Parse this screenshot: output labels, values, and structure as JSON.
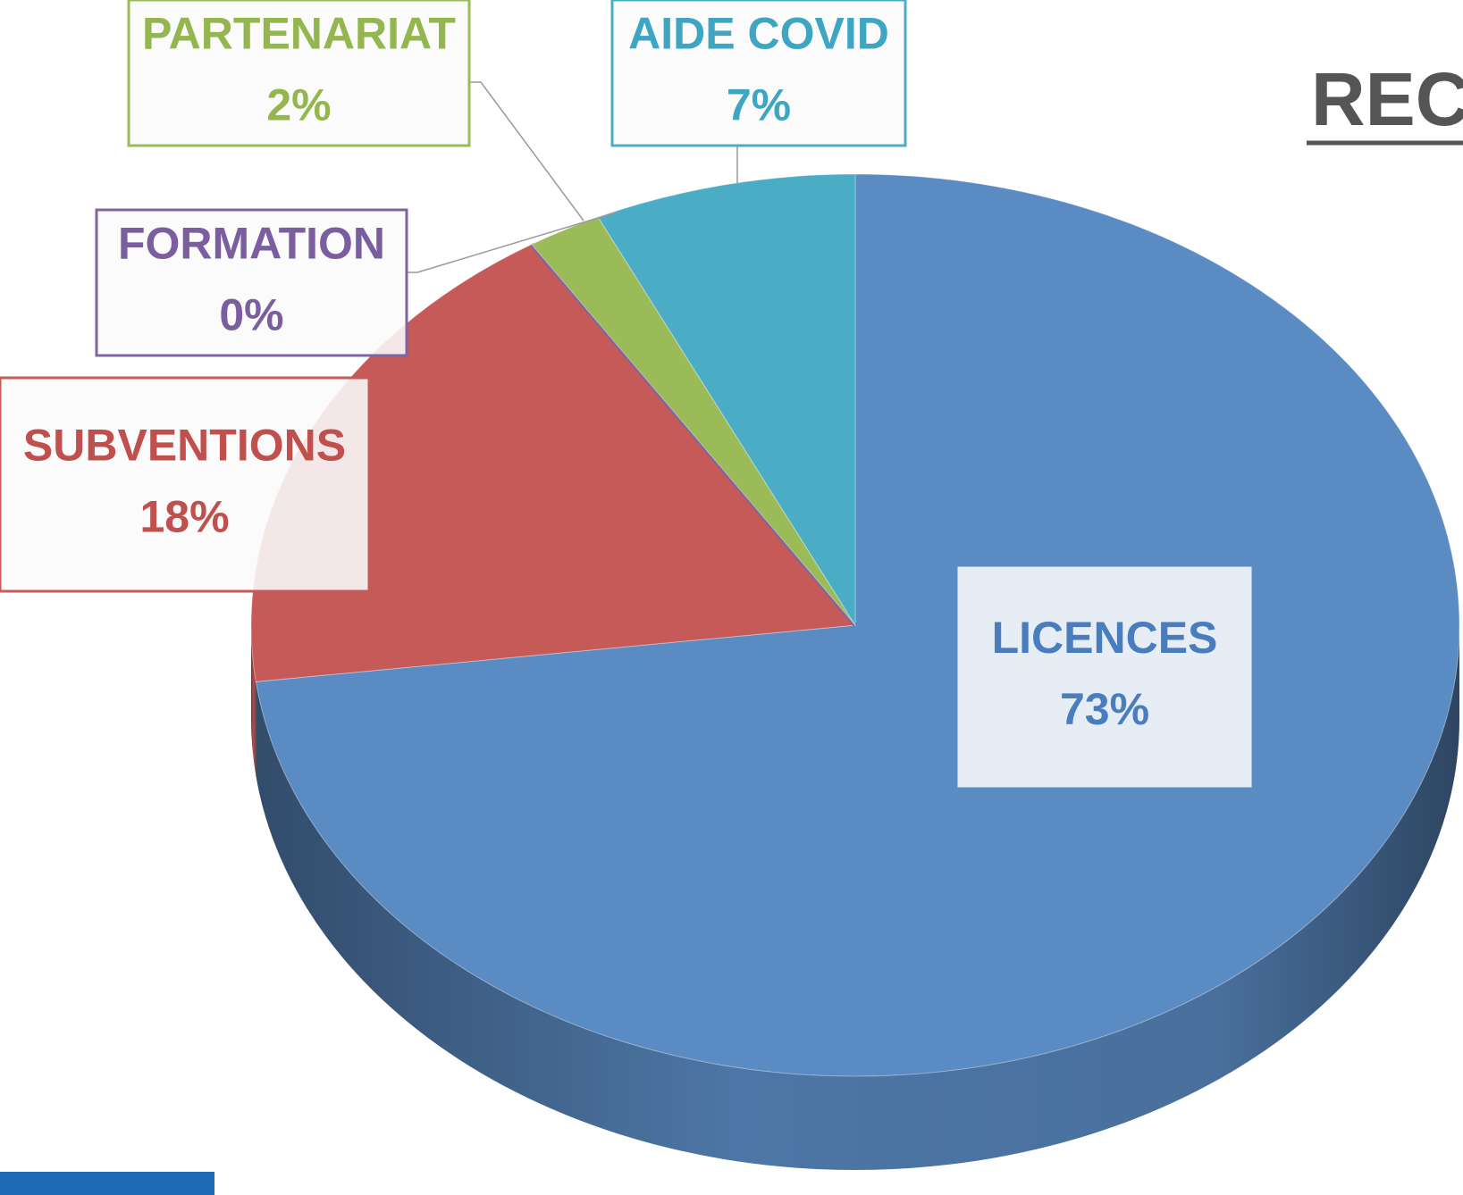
{
  "chart_data": {
    "type": "pie",
    "title": "REC",
    "categories": [
      "LICENCES",
      "SUBVENTIONS",
      "FORMATION",
      "PARTENARIAT",
      "AIDE COVID"
    ],
    "values": [
      73,
      18,
      0,
      2,
      7
    ],
    "value_labels": [
      "73%",
      "18%",
      "0%",
      "2%",
      "7%"
    ],
    "colors": [
      "#5b8bc3",
      "#c55a58",
      "#8064a2",
      "#9bbb59",
      "#4bacc6"
    ]
  }
}
